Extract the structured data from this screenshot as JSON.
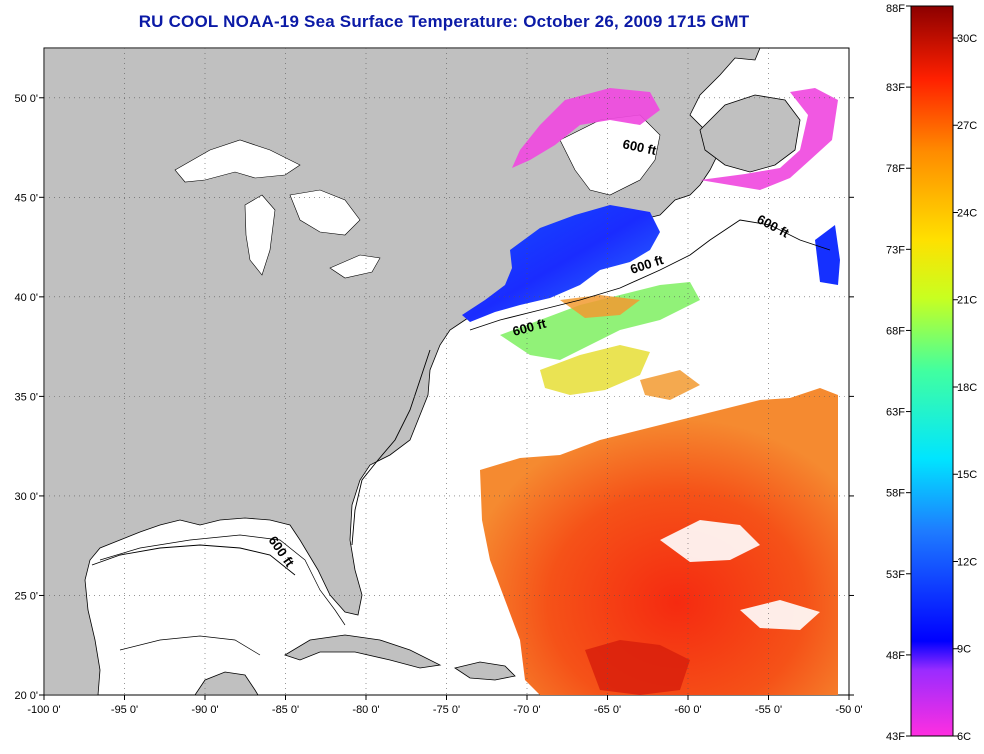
{
  "title": "RU COOL  NOAA-19  Sea Surface Temperature:  October 26, 2009 1715 GMT",
  "map": {
    "lon_range": [
      -100,
      -50
    ],
    "lat_range": [
      20,
      52.5
    ],
    "lon_ticks": [
      "-100 0'",
      "-95 0'",
      "-90 0'",
      "-85 0'",
      "-80 0'",
      "-75 0'",
      "-70 0'",
      "-65 0'",
      "-60 0'",
      "-55 0'",
      "-50 0'"
    ],
    "lat_ticks": [
      "50 0'",
      "45 0'",
      "40 0'",
      "35 0'",
      "30 0'",
      "25 0'",
      "20 0'"
    ],
    "contour_labels": [
      "600 ft",
      "600 ft",
      "600 ft",
      "600 ft",
      "600 ft"
    ],
    "colors": {
      "land": "#c0c0c0",
      "no_data": "#ffffff",
      "grid": "#555555"
    }
  },
  "colorbar": {
    "fahrenheit_ticks": [
      "88F",
      "83F",
      "78F",
      "73F",
      "68F",
      "63F",
      "58F",
      "53F",
      "48F",
      "43F"
    ],
    "celsius_ticks": [
      "30C",
      "27C",
      "24C",
      "21C",
      "18C",
      "15C",
      "12C",
      "9C",
      "6C"
    ],
    "range_c": [
      6,
      31.1
    ]
  }
}
